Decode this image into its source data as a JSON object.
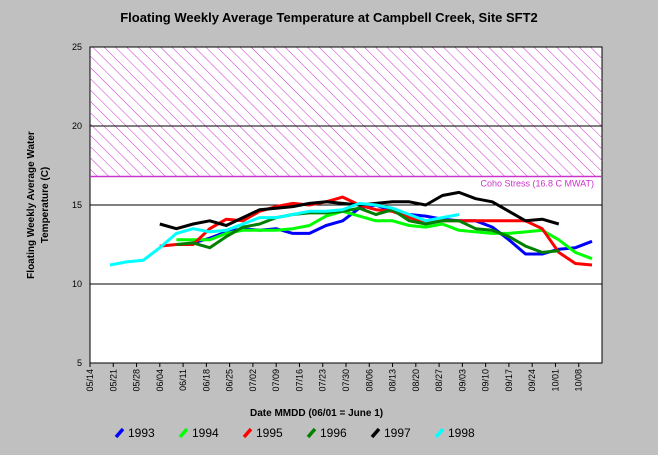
{
  "chart_data": {
    "type": "line",
    "title": "Floating Weekly Average Temperature at Campbell Creek, Site SFT2",
    "xlabel": "Date MMDD (06/01 = June 1)",
    "ylabel": [
      "Floating Weekly Average Water",
      "Temperature (C)"
    ],
    "x": [
      "05/20",
      "05/25",
      "05/30",
      "06/04",
      "06/09",
      "06/14",
      "06/19",
      "06/24",
      "06/29",
      "07/04",
      "07/09",
      "07/14",
      "07/19",
      "07/24",
      "07/29",
      "08/03",
      "08/08",
      "08/13",
      "08/18",
      "08/23",
      "08/28",
      "09/02",
      "09/07",
      "09/12",
      "09/17",
      "09/22",
      "09/27",
      "10/02",
      "10/07",
      "10/12"
    ],
    "xlim": [
      "05/14",
      "10/15"
    ],
    "xticks": [
      "05/14",
      "05/21",
      "05/28",
      "06/04",
      "06/11",
      "06/18",
      "06/25",
      "07/02",
      "07/09",
      "07/16",
      "07/23",
      "07/30",
      "08/06",
      "08/13",
      "08/20",
      "08/27",
      "09/03",
      "09/10",
      "09/17",
      "09/24",
      "10/01",
      "10/08"
    ],
    "ylim": [
      5,
      25
    ],
    "yticks": [
      5,
      10,
      15,
      20,
      25
    ],
    "grid": true,
    "band": {
      "from": 16.8,
      "to": 25,
      "color": "#cc33cc",
      "label": "Coho Stress (16.8 C MWAT)"
    },
    "series": [
      {
        "name": "1993",
        "color": "#0000ff",
        "values": [
          null,
          null,
          null,
          null,
          null,
          12.6,
          12.9,
          13.3,
          13.5,
          13.4,
          13.5,
          13.2,
          13.2,
          13.7,
          14.0,
          14.8,
          15.0,
          14.6,
          14.4,
          14.3,
          14.1,
          14.0,
          14.0,
          13.6,
          12.8,
          11.9,
          11.9,
          12.2,
          12.3,
          12.7
        ]
      },
      {
        "name": "1994",
        "color": "#00ff00",
        "values": [
          null,
          null,
          null,
          null,
          12.8,
          12.8,
          12.8,
          13.2,
          13.4,
          13.4,
          13.4,
          13.5,
          13.7,
          14.3,
          14.6,
          14.3,
          14.0,
          14.0,
          13.7,
          13.6,
          13.8,
          13.4,
          13.3,
          13.2,
          13.2,
          13.3,
          13.4,
          12.8,
          12.0,
          11.6
        ]
      },
      {
        "name": "1995",
        "color": "#ff0000",
        "values": [
          null,
          null,
          null,
          12.4,
          12.5,
          12.5,
          13.5,
          14.1,
          14.0,
          14.6,
          14.9,
          15.1,
          15.0,
          15.2,
          15.5,
          15.0,
          14.7,
          14.6,
          14.2,
          13.9,
          14.0,
          14.0,
          14.0,
          14.0,
          14.0,
          14.0,
          13.5,
          12.0,
          11.3,
          11.2
        ]
      },
      {
        "name": "1996",
        "color": "#008000",
        "values": [
          null,
          null,
          null,
          null,
          12.5,
          12.6,
          12.3,
          13.0,
          13.6,
          13.8,
          14.2,
          14.4,
          14.5,
          14.5,
          14.6,
          14.8,
          14.4,
          14.7,
          14.0,
          13.8,
          14.0,
          14.0,
          13.5,
          13.4,
          13.0,
          12.4,
          12.0,
          12.1,
          null,
          null
        ]
      },
      {
        "name": "1997",
        "color": "#000000",
        "values": [
          null,
          null,
          null,
          13.8,
          13.5,
          13.8,
          14.0,
          13.7,
          14.2,
          14.7,
          14.8,
          14.9,
          15.1,
          15.2,
          15.1,
          15.0,
          15.1,
          15.2,
          15.2,
          15.0,
          15.6,
          15.8,
          15.4,
          15.2,
          14.6,
          14.0,
          14.1,
          13.8,
          null,
          null
        ]
      },
      {
        "name": "1998",
        "color": "#00ffff",
        "values": [
          11.2,
          11.4,
          11.5,
          12.3,
          13.2,
          13.5,
          13.3,
          13.4,
          13.8,
          14.2,
          14.2,
          14.4,
          14.6,
          14.6,
          14.7,
          15.1,
          15.0,
          14.8,
          14.4,
          14.0,
          14.2,
          14.4,
          null,
          null,
          null,
          null,
          null,
          null,
          null,
          null
        ]
      }
    ]
  }
}
